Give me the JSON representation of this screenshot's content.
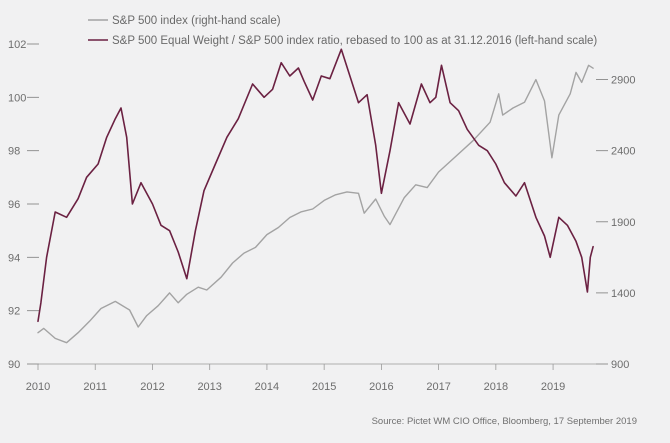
{
  "chart_data": {
    "type": "line",
    "title": "",
    "xlabel": "",
    "ylabel_left": "",
    "ylabel_right": "",
    "x_range": [
      2010.0,
      2019.75
    ],
    "x_ticks": [
      "2010",
      "2011",
      "2012",
      "2013",
      "2014",
      "2015",
      "2016",
      "2017",
      "2018",
      "2019"
    ],
    "ylim_left": [
      90,
      102
    ],
    "yticks_left": [
      "90",
      "92",
      "94",
      "96",
      "98",
      "100",
      "102"
    ],
    "ylim_right": [
      900,
      3150
    ],
    "yticks_right": [
      "900",
      "1400",
      "1900",
      "2400",
      "2900"
    ],
    "grid": false,
    "legend_position": "top-left",
    "series": [
      {
        "name": "S&P 500 index (right-hand scale)",
        "axis": "right",
        "color": "#a3a3a3",
        "x": [
          2010.0,
          2010.1,
          2010.3,
          2010.5,
          2010.7,
          2010.9,
          2011.1,
          2011.35,
          2011.6,
          2011.75,
          2011.9,
          2012.1,
          2012.3,
          2012.45,
          2012.6,
          2012.8,
          2012.95,
          2013.2,
          2013.4,
          2013.6,
          2013.8,
          2014.0,
          2014.2,
          2014.4,
          2014.6,
          2014.8,
          2015.0,
          2015.2,
          2015.4,
          2015.6,
          2015.7,
          2015.9,
          2016.05,
          2016.15,
          2016.4,
          2016.6,
          2016.8,
          2017.0,
          2017.3,
          2017.6,
          2017.9,
          2018.05,
          2018.12,
          2018.3,
          2018.5,
          2018.7,
          2018.85,
          2018.98,
          2019.1,
          2019.3,
          2019.4,
          2019.5,
          2019.62,
          2019.7
        ],
        "y": [
          1120,
          1150,
          1080,
          1050,
          1120,
          1200,
          1290,
          1340,
          1280,
          1160,
          1240,
          1310,
          1400,
          1330,
          1390,
          1440,
          1420,
          1510,
          1610,
          1680,
          1720,
          1810,
          1860,
          1930,
          1970,
          1990,
          2050,
          2090,
          2110,
          2100,
          1960,
          2060,
          1940,
          1880,
          2070,
          2160,
          2140,
          2250,
          2360,
          2470,
          2600,
          2800,
          2650,
          2700,
          2740,
          2900,
          2750,
          2350,
          2650,
          2800,
          2950,
          2880,
          3000,
          2980
        ]
      },
      {
        "name": "S&P 500 Equal Weight / S&P 500 index ratio, rebased to 100 as at 31.12.2016 (left-hand scale)",
        "axis": "left",
        "color": "#6b2142",
        "x": [
          2010.0,
          2010.05,
          2010.15,
          2010.3,
          2010.5,
          2010.7,
          2010.85,
          2011.05,
          2011.2,
          2011.35,
          2011.45,
          2011.55,
          2011.65,
          2011.8,
          2012.0,
          2012.15,
          2012.3,
          2012.45,
          2012.6,
          2012.75,
          2012.9,
          2013.1,
          2013.3,
          2013.5,
          2013.75,
          2013.95,
          2014.1,
          2014.25,
          2014.4,
          2014.55,
          2014.65,
          2014.8,
          2014.95,
          2015.1,
          2015.3,
          2015.45,
          2015.6,
          2015.75,
          2015.9,
          2016.0,
          2016.15,
          2016.3,
          2016.5,
          2016.7,
          2016.85,
          2016.95,
          2017.05,
          2017.2,
          2017.35,
          2017.5,
          2017.7,
          2017.85,
          2018.0,
          2018.15,
          2018.35,
          2018.5,
          2018.7,
          2018.85,
          2018.95,
          2019.1,
          2019.25,
          2019.4,
          2019.5,
          2019.6,
          2019.65,
          2019.7
        ],
        "y": [
          91.6,
          92.3,
          94.0,
          95.7,
          95.5,
          96.2,
          97.0,
          97.5,
          98.5,
          99.2,
          99.6,
          98.5,
          96.0,
          96.8,
          96.0,
          95.2,
          95.0,
          94.2,
          93.2,
          95.0,
          96.5,
          97.5,
          98.5,
          99.2,
          100.5,
          100.0,
          100.3,
          101.3,
          100.8,
          101.1,
          100.6,
          99.9,
          100.8,
          100.7,
          101.8,
          100.8,
          99.8,
          100.1,
          98.2,
          96.4,
          98.0,
          99.8,
          99.0,
          100.5,
          99.8,
          100.0,
          101.2,
          99.8,
          99.5,
          98.8,
          98.2,
          98.0,
          97.5,
          96.8,
          96.3,
          96.8,
          95.5,
          94.8,
          94.0,
          95.5,
          95.2,
          94.6,
          94.0,
          92.7,
          94.0,
          94.4
        ]
      }
    ],
    "source": "Source: Pictet WM CIO Office, Bloomberg, 17 September  2019"
  }
}
